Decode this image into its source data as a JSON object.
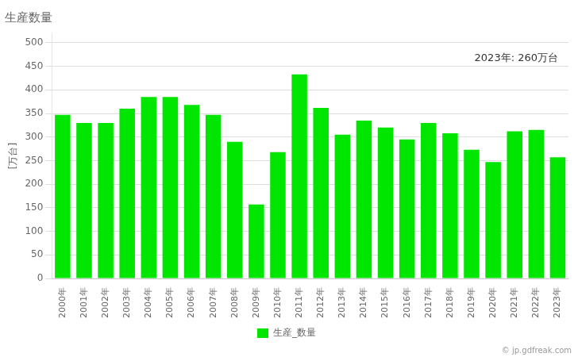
{
  "chart_data": {
    "type": "bar",
    "title": "生産数量",
    "y_label": "[万台]",
    "categories": [
      "2000年",
      "2001年",
      "2002年",
      "2003年",
      "2004年",
      "2005年",
      "2006年",
      "2007年",
      "2008年",
      "2009年",
      "2010年",
      "2011年",
      "2012年",
      "2013年",
      "2014年",
      "2015年",
      "2016年",
      "2017年",
      "2018年",
      "2019年",
      "2020年",
      "2021年",
      "2022年",
      "2023年"
    ],
    "series": [
      {
        "name": "生産_数量",
        "color": "#00e600",
        "values": [
          347,
          330,
          330,
          360,
          385,
          385,
          368,
          347,
          290,
          157,
          268,
          433,
          362,
          305,
          335,
          320,
          295,
          330,
          308,
          273,
          247,
          312,
          315,
          257
        ]
      }
    ],
    "ylim": [
      0,
      520
    ],
    "yticks": [
      0,
      50,
      100,
      150,
      200,
      250,
      300,
      350,
      400,
      450,
      500
    ],
    "grid": true,
    "legend": "bottom",
    "annotations": [
      "2023年: 260万台",
      "© jp.gdfreak.com"
    ]
  }
}
